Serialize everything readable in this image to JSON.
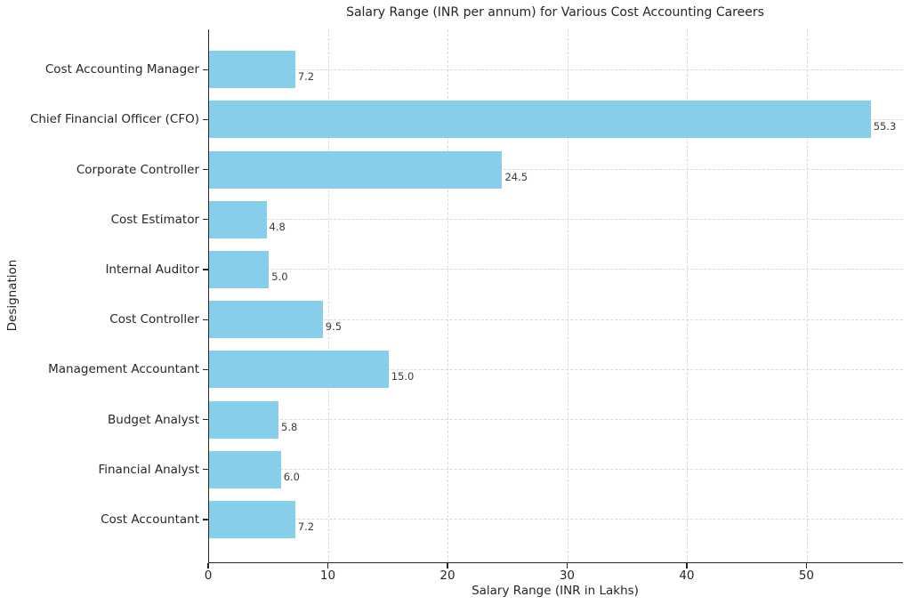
{
  "figure": {
    "background": "#ffffff"
  },
  "chart_data": {
    "type": "bar",
    "orientation": "horizontal",
    "title": "Salary Range (INR per annum) for Various Cost Accounting Careers",
    "xlabel": "Salary Range (INR in Lakhs)",
    "ylabel": "Designation",
    "categories": [
      "Cost Accounting Manager",
      "Chief Financial Officer (CFO)",
      "Corporate Controller",
      "Cost Estimator",
      "Internal Auditor",
      "Cost Controller",
      "Management Accountant",
      "Budget Analyst",
      "Financial Analyst",
      "Cost Accountant"
    ],
    "values": [
      7.2,
      55.3,
      24.5,
      4.8,
      5.0,
      9.5,
      15.0,
      5.8,
      6.0,
      7.2
    ],
    "value_labels": [
      "7.2",
      "55.3",
      "24.5",
      "4.8",
      "5.0",
      "9.5",
      "15.0",
      "5.8",
      "6.0",
      "7.2"
    ],
    "categories_order": "top-to-bottom",
    "xlim": [
      0,
      58
    ],
    "xticks": [
      0,
      10,
      20,
      30,
      40,
      50
    ],
    "bar_color": "#87CEEB",
    "grid": {
      "show": true,
      "style": "dashed",
      "color": "#d9d9d9",
      "axes": "both"
    },
    "spine_color": "#262626",
    "text_color": "#262626",
    "legend": "none"
  }
}
